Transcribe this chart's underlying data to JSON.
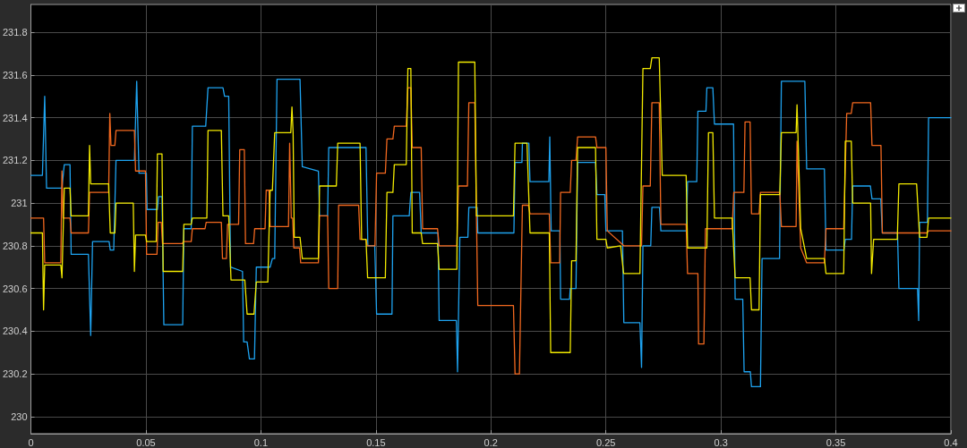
{
  "chart_data": {
    "type": "line",
    "xlim": [
      0,
      0.4
    ],
    "xticks": [
      0,
      0.05,
      0.1,
      0.15,
      0.2,
      0.25,
      0.3,
      0.35,
      0.4
    ],
    "ylim": [
      229.92,
      231.93
    ],
    "yticks": [
      230,
      230.2,
      230.4,
      230.6,
      230.8,
      231,
      231.2,
      231.4,
      231.6,
      231.8
    ],
    "grid": true,
    "marker": "none",
    "line_style": "solid",
    "series": [
      {
        "color": "#1ea3f0",
        "x": [
          0,
          0.005,
          0.006,
          0.0068,
          0.0135,
          0.0145,
          0.017,
          0.0175,
          0.025,
          0.026,
          0.0268,
          0.034,
          0.0345,
          0.036,
          0.037,
          0.045,
          0.046,
          0.047,
          0.0502,
          0.0505,
          0.055,
          0.0555,
          0.057,
          0.0578,
          0.066,
          0.0665,
          0.0697,
          0.0702,
          0.076,
          0.077,
          0.0835,
          0.0842,
          0.086,
          0.0868,
          0.092,
          0.0925,
          0.094,
          0.095,
          0.0972,
          0.098,
          0.104,
          0.105,
          0.106,
          0.107,
          0.117,
          0.118,
          0.125,
          0.1255,
          0.129,
          0.1295,
          0.1457,
          0.1465,
          0.1495,
          0.1503,
          0.157,
          0.1574,
          0.1645,
          0.1652,
          0.169,
          0.1697,
          0.177,
          0.1775,
          0.185,
          0.1855,
          0.1865,
          0.19,
          0.1904,
          0.194,
          0.1943,
          0.21,
          0.2105,
          0.2135,
          0.2137,
          0.2165,
          0.217,
          0.2252,
          0.2256,
          0.2262,
          0.23,
          0.2303,
          0.2342,
          0.2345,
          0.237,
          0.2377,
          0.2455,
          0.2461,
          0.2495,
          0.25,
          0.2572,
          0.2578,
          0.2648,
          0.2655,
          0.2661,
          0.2695,
          0.27,
          0.2733,
          0.2739,
          0.285,
          0.2855,
          0.2895,
          0.29,
          0.2935,
          0.2939,
          0.2965,
          0.2972,
          0.3055,
          0.3062,
          0.3095,
          0.3101,
          0.3128,
          0.3133,
          0.3172,
          0.3179,
          0.3255,
          0.3263,
          0.3365,
          0.3373,
          0.345,
          0.3457,
          0.3535,
          0.3541,
          0.3568,
          0.3573,
          0.365,
          0.3657,
          0.3695,
          0.3702,
          0.3768,
          0.3774,
          0.3855,
          0.386,
          0.3864,
          0.3898,
          0.3903,
          0.4
        ],
        "values": [
          231.13,
          231.13,
          231.5,
          231.07,
          231.07,
          231.18,
          231.18,
          230.76,
          230.76,
          230.38,
          230.82,
          230.82,
          230.78,
          230.78,
          231.2,
          231.2,
          231.57,
          231.14,
          231.14,
          230.97,
          230.97,
          231.03,
          231.03,
          230.43,
          230.43,
          230.88,
          230.88,
          231.36,
          231.36,
          231.54,
          231.54,
          231.5,
          231.5,
          230.7,
          230.68,
          230.35,
          230.35,
          230.27,
          230.27,
          230.7,
          230.7,
          230.74,
          230.74,
          231.58,
          231.58,
          231.17,
          231.15,
          230.94,
          230.94,
          231.26,
          231.26,
          230.8,
          230.8,
          230.48,
          230.48,
          230.94,
          230.94,
          231.05,
          231.05,
          230.86,
          230.86,
          230.45,
          230.45,
          230.21,
          230.84,
          230.84,
          230.98,
          230.98,
          230.86,
          230.86,
          231.19,
          231.19,
          231.28,
          231.28,
          231.1,
          231.1,
          231.31,
          230.87,
          230.87,
          230.55,
          230.55,
          230.6,
          230.6,
          231.19,
          231.19,
          231.04,
          231.04,
          230.87,
          230.87,
          230.44,
          230.44,
          230.23,
          230.8,
          230.8,
          230.98,
          230.98,
          230.87,
          230.87,
          231.1,
          231.1,
          231.43,
          231.43,
          231.54,
          231.54,
          231.37,
          231.37,
          230.55,
          230.55,
          230.21,
          230.21,
          230.14,
          230.14,
          230.74,
          230.74,
          231.57,
          231.57,
          231.16,
          231.16,
          230.78,
          230.78,
          230.83,
          230.83,
          231.08,
          231.08,
          231.02,
          231.02,
          230.86,
          230.86,
          230.6,
          230.6,
          230.45,
          230.91,
          230.91,
          231.4,
          231.4
        ]
      },
      {
        "color": "#f2681f",
        "x": [
          0,
          0.0055,
          0.006,
          0.013,
          0.0135,
          0.014,
          0.017,
          0.0175,
          0.025,
          0.0255,
          0.0338,
          0.0343,
          0.0348,
          0.0365,
          0.037,
          0.045,
          0.0455,
          0.0498,
          0.0503,
          0.0548,
          0.0553,
          0.0567,
          0.0572,
          0.0658,
          0.0663,
          0.0697,
          0.0702,
          0.0757,
          0.0762,
          0.0828,
          0.0833,
          0.085,
          0.0855,
          0.0903,
          0.0908,
          0.0928,
          0.0933,
          0.0968,
          0.0973,
          0.1018,
          0.1023,
          0.1035,
          0.104,
          0.112,
          0.1125,
          0.1132,
          0.1138,
          0.1143,
          0.1168,
          0.1173,
          0.125,
          0.1255,
          0.129,
          0.1295,
          0.1334,
          0.1338,
          0.1425,
          0.1431,
          0.1457,
          0.1462,
          0.1496,
          0.1503,
          0.1541,
          0.1548,
          0.1574,
          0.158,
          0.1632,
          0.1639,
          0.1652,
          0.1658,
          0.1697,
          0.1703,
          0.1768,
          0.1775,
          0.1852,
          0.1859,
          0.1898,
          0.1904,
          0.193,
          0.1943,
          0.2098,
          0.2105,
          0.2124,
          0.2137,
          0.2163,
          0.217,
          0.2254,
          0.226,
          0.2299,
          0.2303,
          0.2345,
          0.2351,
          0.237,
          0.2377,
          0.2455,
          0.2461,
          0.25,
          0.2506,
          0.2578,
          0.2655,
          0.2661,
          0.2693,
          0.27,
          0.2732,
          0.2739,
          0.2849,
          0.2855,
          0.29,
          0.2903,
          0.2926,
          0.2933,
          0.3049,
          0.3056,
          0.31,
          0.3105,
          0.3127,
          0.3133,
          0.3166,
          0.3172,
          0.3256,
          0.3263,
          0.3327,
          0.3331,
          0.3347,
          0.3373,
          0.345,
          0.3457,
          0.3534,
          0.3547,
          0.3567,
          0.3573,
          0.3651,
          0.3657,
          0.3696,
          0.3702,
          0.3896,
          0.3903,
          0.4
        ],
        "values": [
          230.93,
          230.93,
          230.72,
          230.72,
          231.15,
          230.93,
          230.93,
          230.86,
          230.86,
          231.05,
          231.05,
          231.42,
          231.27,
          231.27,
          231.34,
          231.34,
          231.15,
          231.15,
          230.76,
          230.76,
          230.91,
          230.91,
          230.81,
          230.81,
          230.82,
          230.82,
          230.88,
          230.88,
          230.91,
          230.91,
          230.74,
          230.74,
          230.9,
          230.9,
          231.25,
          231.25,
          230.81,
          230.81,
          230.88,
          230.88,
          231.06,
          231.06,
          230.89,
          230.89,
          231.28,
          230.93,
          230.93,
          230.79,
          230.79,
          230.72,
          230.72,
          230.94,
          230.94,
          230.6,
          230.6,
          230.99,
          230.99,
          230.83,
          230.83,
          230.8,
          230.8,
          231.14,
          231.14,
          231.3,
          231.3,
          231.36,
          231.36,
          231.54,
          231.54,
          231.26,
          231.26,
          230.88,
          230.88,
          230.8,
          230.8,
          231.08,
          231.08,
          231.47,
          231.47,
          230.52,
          230.52,
          230.2,
          230.2,
          230.99,
          230.99,
          230.95,
          230.95,
          230.72,
          230.72,
          231.05,
          231.05,
          231.2,
          231.2,
          231.31,
          231.31,
          231.26,
          231.26,
          230.87,
          230.8,
          230.8,
          231.08,
          231.08,
          231.47,
          231.47,
          230.9,
          230.9,
          230.67,
          230.67,
          230.34,
          230.34,
          230.88,
          230.88,
          231.05,
          231.05,
          231.38,
          231.38,
          230.95,
          230.95,
          231.05,
          231.05,
          230.89,
          230.89,
          231.29,
          230.79,
          230.72,
          230.72,
          230.88,
          230.88,
          231.42,
          231.42,
          231.47,
          231.47,
          231.27,
          231.27,
          230.86,
          230.86,
          230.87,
          230.87
        ]
      },
      {
        "color": "#f2ea00",
        "x": [
          0,
          0.005,
          0.0055,
          0.006,
          0.013,
          0.0135,
          0.0145,
          0.017,
          0.0175,
          0.025,
          0.0255,
          0.026,
          0.0338,
          0.0345,
          0.0365,
          0.037,
          0.0445,
          0.045,
          0.0455,
          0.0498,
          0.0503,
          0.0545,
          0.055,
          0.057,
          0.0575,
          0.066,
          0.0665,
          0.0697,
          0.0702,
          0.0765,
          0.077,
          0.0828,
          0.0835,
          0.086,
          0.087,
          0.093,
          0.094,
          0.097,
          0.098,
          0.103,
          0.104,
          0.105,
          0.106,
          0.113,
          0.1135,
          0.114,
          0.1145,
          0.117,
          0.118,
          0.125,
          0.1255,
          0.1328,
          0.1334,
          0.1431,
          0.1438,
          0.1457,
          0.1464,
          0.1541,
          0.1548,
          0.1574,
          0.158,
          0.1632,
          0.1639,
          0.1652,
          0.1658,
          0.1697,
          0.1703,
          0.1768,
          0.1775,
          0.1852,
          0.1859,
          0.193,
          0.1937,
          0.2098,
          0.2105,
          0.2157,
          0.217,
          0.2254,
          0.226,
          0.2345,
          0.2351,
          0.237,
          0.2377,
          0.2455,
          0.2461,
          0.25,
          0.2506,
          0.2564,
          0.2577,
          0.2648,
          0.2661,
          0.2693,
          0.27,
          0.2732,
          0.2745,
          0.2849,
          0.2855,
          0.2939,
          0.2946,
          0.2965,
          0.2972,
          0.3049,
          0.3062,
          0.3127,
          0.3133,
          0.3166,
          0.3172,
          0.3256,
          0.3263,
          0.3327,
          0.3331,
          0.3347,
          0.3373,
          0.345,
          0.3457,
          0.3534,
          0.3541,
          0.3567,
          0.3573,
          0.3651,
          0.3655,
          0.3664,
          0.3767,
          0.3774,
          0.3851,
          0.3864,
          0.3896,
          0.3903,
          0.4
        ],
        "values": [
          230.86,
          230.86,
          230.5,
          230.71,
          230.71,
          230.65,
          231.07,
          231.07,
          230.94,
          230.94,
          231.27,
          231.09,
          231.09,
          230.86,
          230.86,
          231.0,
          231.0,
          230.68,
          230.85,
          230.85,
          230.82,
          230.82,
          231.23,
          231.23,
          230.68,
          230.68,
          230.9,
          230.9,
          230.93,
          230.93,
          231.34,
          231.34,
          230.94,
          230.94,
          230.64,
          230.64,
          230.48,
          230.48,
          230.63,
          230.63,
          231.06,
          231.06,
          231.33,
          231.33,
          231.45,
          231.33,
          230.84,
          230.84,
          230.74,
          230.74,
          231.08,
          231.08,
          231.28,
          231.28,
          230.83,
          230.83,
          230.65,
          230.65,
          231.05,
          231.05,
          231.18,
          231.18,
          231.63,
          231.63,
          230.86,
          230.86,
          230.81,
          230.81,
          230.69,
          230.69,
          231.66,
          231.66,
          230.94,
          230.94,
          231.28,
          231.28,
          230.86,
          230.86,
          230.3,
          230.3,
          230.73,
          230.73,
          231.26,
          231.26,
          230.83,
          230.83,
          230.79,
          230.8,
          230.67,
          230.67,
          231.63,
          231.63,
          231.68,
          231.68,
          231.13,
          231.13,
          230.79,
          230.79,
          231.33,
          231.33,
          230.93,
          230.93,
          230.65,
          230.65,
          230.5,
          230.5,
          231.04,
          231.04,
          231.33,
          231.33,
          231.46,
          230.88,
          230.74,
          230.74,
          230.67,
          230.67,
          231.29,
          231.29,
          231.0,
          231.0,
          230.67,
          230.83,
          230.83,
          231.09,
          231.09,
          230.84,
          230.84,
          230.93,
          230.93
        ]
      }
    ]
  }
}
